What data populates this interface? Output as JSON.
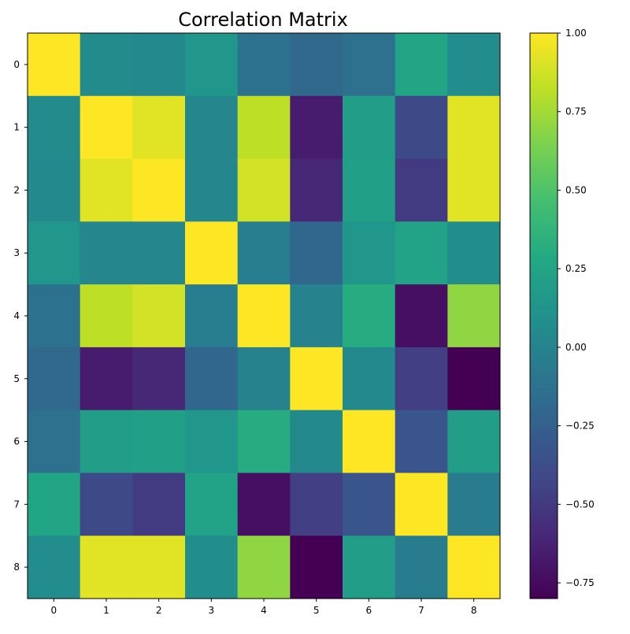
{
  "chart_data": {
    "type": "heatmap",
    "title": "Correlation Matrix",
    "xlabel": "",
    "ylabel": "",
    "x_categories": [
      "0",
      "1",
      "2",
      "3",
      "4",
      "5",
      "6",
      "7",
      "8"
    ],
    "y_categories": [
      "0",
      "1",
      "2",
      "3",
      "4",
      "5",
      "6",
      "7",
      "8"
    ],
    "values": [
      [
        1.0,
        0.06,
        0.04,
        0.14,
        -0.12,
        -0.19,
        -0.13,
        0.26,
        0.07
      ],
      [
        0.06,
        1.0,
        0.92,
        0.02,
        0.82,
        -0.66,
        0.19,
        -0.4,
        0.92
      ],
      [
        0.04,
        0.92,
        1.0,
        0.02,
        0.88,
        -0.6,
        0.22,
        -0.49,
        0.92
      ],
      [
        0.14,
        0.02,
        0.02,
        1.0,
        -0.04,
        -0.2,
        0.14,
        0.23,
        0.08
      ],
      [
        -0.12,
        0.82,
        0.88,
        -0.04,
        1.0,
        0.0,
        0.31,
        -0.73,
        0.7
      ],
      [
        -0.19,
        -0.66,
        -0.6,
        -0.2,
        0.0,
        1.0,
        0.04,
        -0.47,
        -0.8
      ],
      [
        -0.13,
        0.19,
        0.22,
        0.14,
        0.31,
        0.04,
        1.0,
        -0.33,
        0.19
      ],
      [
        0.26,
        -0.4,
        -0.49,
        0.23,
        -0.73,
        -0.47,
        -0.33,
        1.0,
        -0.05
      ],
      [
        0.07,
        0.92,
        0.92,
        0.08,
        0.7,
        -0.8,
        0.19,
        -0.05,
        1.0
      ]
    ],
    "vmin": -0.8,
    "vmax": 1.0,
    "colormap": "viridis",
    "colorbar_ticks": [
      1.0,
      0.75,
      0.5,
      0.25,
      0.0,
      -0.25,
      -0.5,
      -0.75
    ],
    "colorbar_tick_labels": [
      "1.00",
      "0.75",
      "0.50",
      "0.25",
      "0.00",
      "−0.25",
      "−0.50",
      "−0.75"
    ],
    "grid": false,
    "legend": "colorbar-right"
  }
}
